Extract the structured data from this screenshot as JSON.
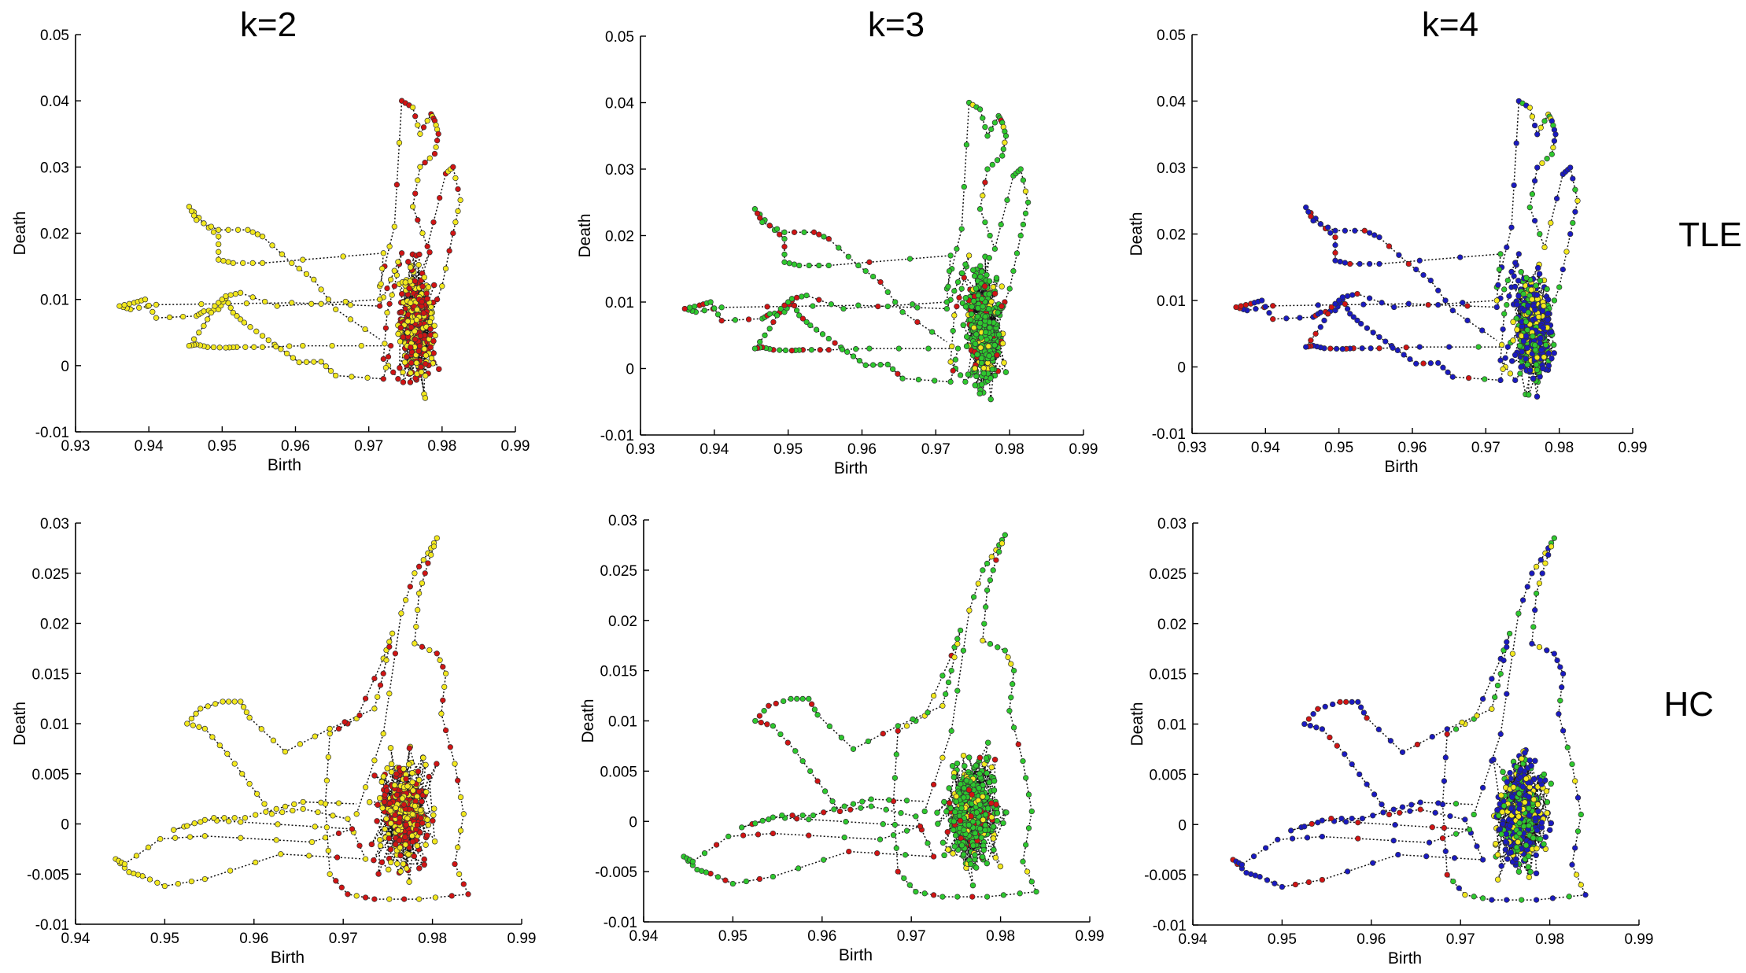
{
  "chart_data": {
    "type": "scatter",
    "description_title": "Persistence trajectories by cluster count",
    "column_titles": [
      "k=2",
      "k=3",
      "k=4"
    ],
    "row_labels": [
      "TLE",
      "HC"
    ],
    "xlabel": "Birth",
    "ylabel": "Death",
    "cluster_colors": [
      "#d01414",
      "#f2e81e",
      "#2ec82e",
      "#1a1ac0"
    ],
    "rows": [
      {
        "label": "TLE",
        "xlim": [
          0.93,
          0.99
        ],
        "ylim": [
          -0.01,
          0.05
        ],
        "xticks": [
          "0.93",
          "0.94",
          "0.95",
          "0.96",
          "0.97",
          "0.98",
          "0.99"
        ],
        "yticks": [
          "-0.01",
          "0",
          "0.01",
          "0.02",
          "0.03",
          "0.04",
          "0.05"
        ],
        "trajectory_points": [
          [
            0.9715,
            0.012
          ],
          [
            0.9735,
            0.021
          ],
          [
            0.9745,
            0.04
          ],
          [
            0.976,
            0.039
          ],
          [
            0.977,
            0.035
          ],
          [
            0.9785,
            0.038
          ],
          [
            0.979,
            0.037
          ],
          [
            0.9795,
            0.035
          ],
          [
            0.979,
            0.032
          ],
          [
            0.977,
            0.03
          ],
          [
            0.976,
            0.024
          ],
          [
            0.978,
            0.018
          ],
          [
            0.9805,
            0.029
          ],
          [
            0.9815,
            0.03
          ],
          [
            0.9825,
            0.025
          ],
          [
            0.9815,
            0.02
          ],
          [
            0.98,
            0.012
          ],
          [
            0.978,
            0.006
          ],
          [
            0.976,
            0.001
          ],
          [
            0.974,
            -0.002
          ],
          [
            0.972,
            0.001
          ],
          [
            0.9725,
            0.008
          ],
          [
            0.9735,
            0.012
          ],
          [
            0.9745,
            0.017
          ],
          [
            0.973,
            0.013
          ],
          [
            0.9715,
            0.009
          ],
          [
            0.9595,
            0.0095
          ],
          [
            0.941,
            0.0092
          ],
          [
            0.9375,
            0.0085
          ],
          [
            0.936,
            0.009
          ],
          [
            0.938,
            0.0095
          ],
          [
            0.9395,
            0.01
          ],
          [
            0.941,
            0.0072
          ],
          [
            0.9465,
            0.0075
          ],
          [
            0.9475,
            0.0082
          ],
          [
            0.9495,
            0.0085
          ],
          [
            0.9505,
            0.0102
          ],
          [
            0.9515,
            0.008
          ],
          [
            0.953,
            0.0065
          ],
          [
            0.9555,
            0.0045
          ],
          [
            0.958,
            0.0025
          ],
          [
            0.9605,
            0.0005
          ],
          [
            0.9635,
            0.0006
          ],
          [
            0.9655,
            -0.0015
          ],
          [
            0.972,
            -0.002
          ],
          [
            0.973,
            0.003
          ],
          [
            0.961,
            0.003
          ],
          [
            0.9555,
            0.0028
          ],
          [
            0.952,
            0.0028
          ],
          [
            0.9505,
            0.0027
          ],
          [
            0.948,
            0.0028
          ],
          [
            0.9465,
            0.0032
          ],
          [
            0.9455,
            0.003
          ],
          [
            0.9475,
            0.006
          ],
          [
            0.949,
            0.009
          ],
          [
            0.9505,
            0.0105
          ],
          [
            0.9525,
            0.011
          ],
          [
            0.9575,
            0.009
          ],
          [
            0.9715,
            0.01
          ],
          [
            0.972,
            0.017
          ],
          [
            0.9555,
            0.0155
          ],
          [
            0.9515,
            0.0155
          ],
          [
            0.9495,
            0.016
          ],
          [
            0.9495,
            0.0195
          ],
          [
            0.9475,
            0.0215
          ],
          [
            0.9455,
            0.024
          ],
          [
            0.9465,
            0.022
          ],
          [
            0.9495,
            0.0205
          ],
          [
            0.9535,
            0.0205
          ],
          [
            0.9555,
            0.0195
          ],
          [
            0.9595,
            0.0155
          ],
          [
            0.9625,
            0.013
          ],
          [
            0.9655,
            0.0085
          ],
          [
            0.9715,
            0.004
          ]
        ]
      },
      {
        "label": "HC",
        "xlim": [
          0.94,
          0.99
        ],
        "ylim": [
          -0.01,
          0.03
        ],
        "xticks": [
          "0.94",
          "0.95",
          "0.96",
          "0.97",
          "0.98",
          "0.99"
        ],
        "yticks": [
          "-0.01",
          "-0.005",
          "0",
          "0.005",
          "0.01",
          "0.015",
          "0.02",
          "0.025",
          "0.03"
        ],
        "trajectory_points": [
          [
            0.9715,
            0.001
          ],
          [
            0.9745,
            0.009
          ],
          [
            0.9765,
            0.021
          ],
          [
            0.978,
            0.025
          ],
          [
            0.9795,
            0.027
          ],
          [
            0.9805,
            0.0285
          ],
          [
            0.9795,
            0.026
          ],
          [
            0.9785,
            0.023
          ],
          [
            0.978,
            0.018
          ],
          [
            0.9805,
            0.017
          ],
          [
            0.9815,
            0.015
          ],
          [
            0.981,
            0.011
          ],
          [
            0.9825,
            0.006
          ],
          [
            0.9835,
            0.001
          ],
          [
            0.9825,
            -0.004
          ],
          [
            0.984,
            -0.007
          ],
          [
            0.9785,
            -0.0075
          ],
          [
            0.9735,
            -0.0075
          ],
          [
            0.9705,
            -0.007
          ],
          [
            0.9685,
            -0.005
          ],
          [
            0.968,
            0.002
          ],
          [
            0.9685,
            0.009
          ],
          [
            0.9715,
            0.0105
          ],
          [
            0.9745,
            0.0165
          ],
          [
            0.9755,
            0.019
          ],
          [
            0.9745,
            0.015
          ],
          [
            0.9735,
            0.0115
          ],
          [
            0.9685,
            0.0095
          ],
          [
            0.9635,
            0.0072
          ],
          [
            0.9595,
            0.0106
          ],
          [
            0.9585,
            0.0122
          ],
          [
            0.9565,
            0.0122
          ],
          [
            0.954,
            0.0115
          ],
          [
            0.9525,
            0.01
          ],
          [
            0.9545,
            0.0095
          ],
          [
            0.957,
            0.007
          ],
          [
            0.9595,
            0.004
          ],
          [
            0.962,
            0.001
          ],
          [
            0.9655,
            0.0015
          ],
          [
            0.9705,
            0.0005
          ],
          [
            0.9725,
            -0.0035
          ],
          [
            0.963,
            -0.003
          ],
          [
            0.9545,
            -0.0055
          ],
          [
            0.95,
            -0.0062
          ],
          [
            0.9475,
            -0.0052
          ],
          [
            0.946,
            -0.0048
          ],
          [
            0.9445,
            -0.0035
          ],
          [
            0.9455,
            -0.004
          ],
          [
            0.9495,
            -0.0015
          ],
          [
            0.9545,
            -0.0012
          ],
          [
            0.9665,
            -0.0018
          ],
          [
            0.971,
            -0.0005
          ],
          [
            0.9585,
            0.0002
          ],
          [
            0.9545,
            0.0004
          ],
          [
            0.951,
            -0.0006
          ],
          [
            0.9555,
            0.0006
          ],
          [
            0.959,
            0.0006
          ],
          [
            0.9625,
            0.0015
          ],
          [
            0.9655,
            0.0022
          ],
          [
            0.9715,
            0.002
          ]
        ]
      }
    ]
  }
}
